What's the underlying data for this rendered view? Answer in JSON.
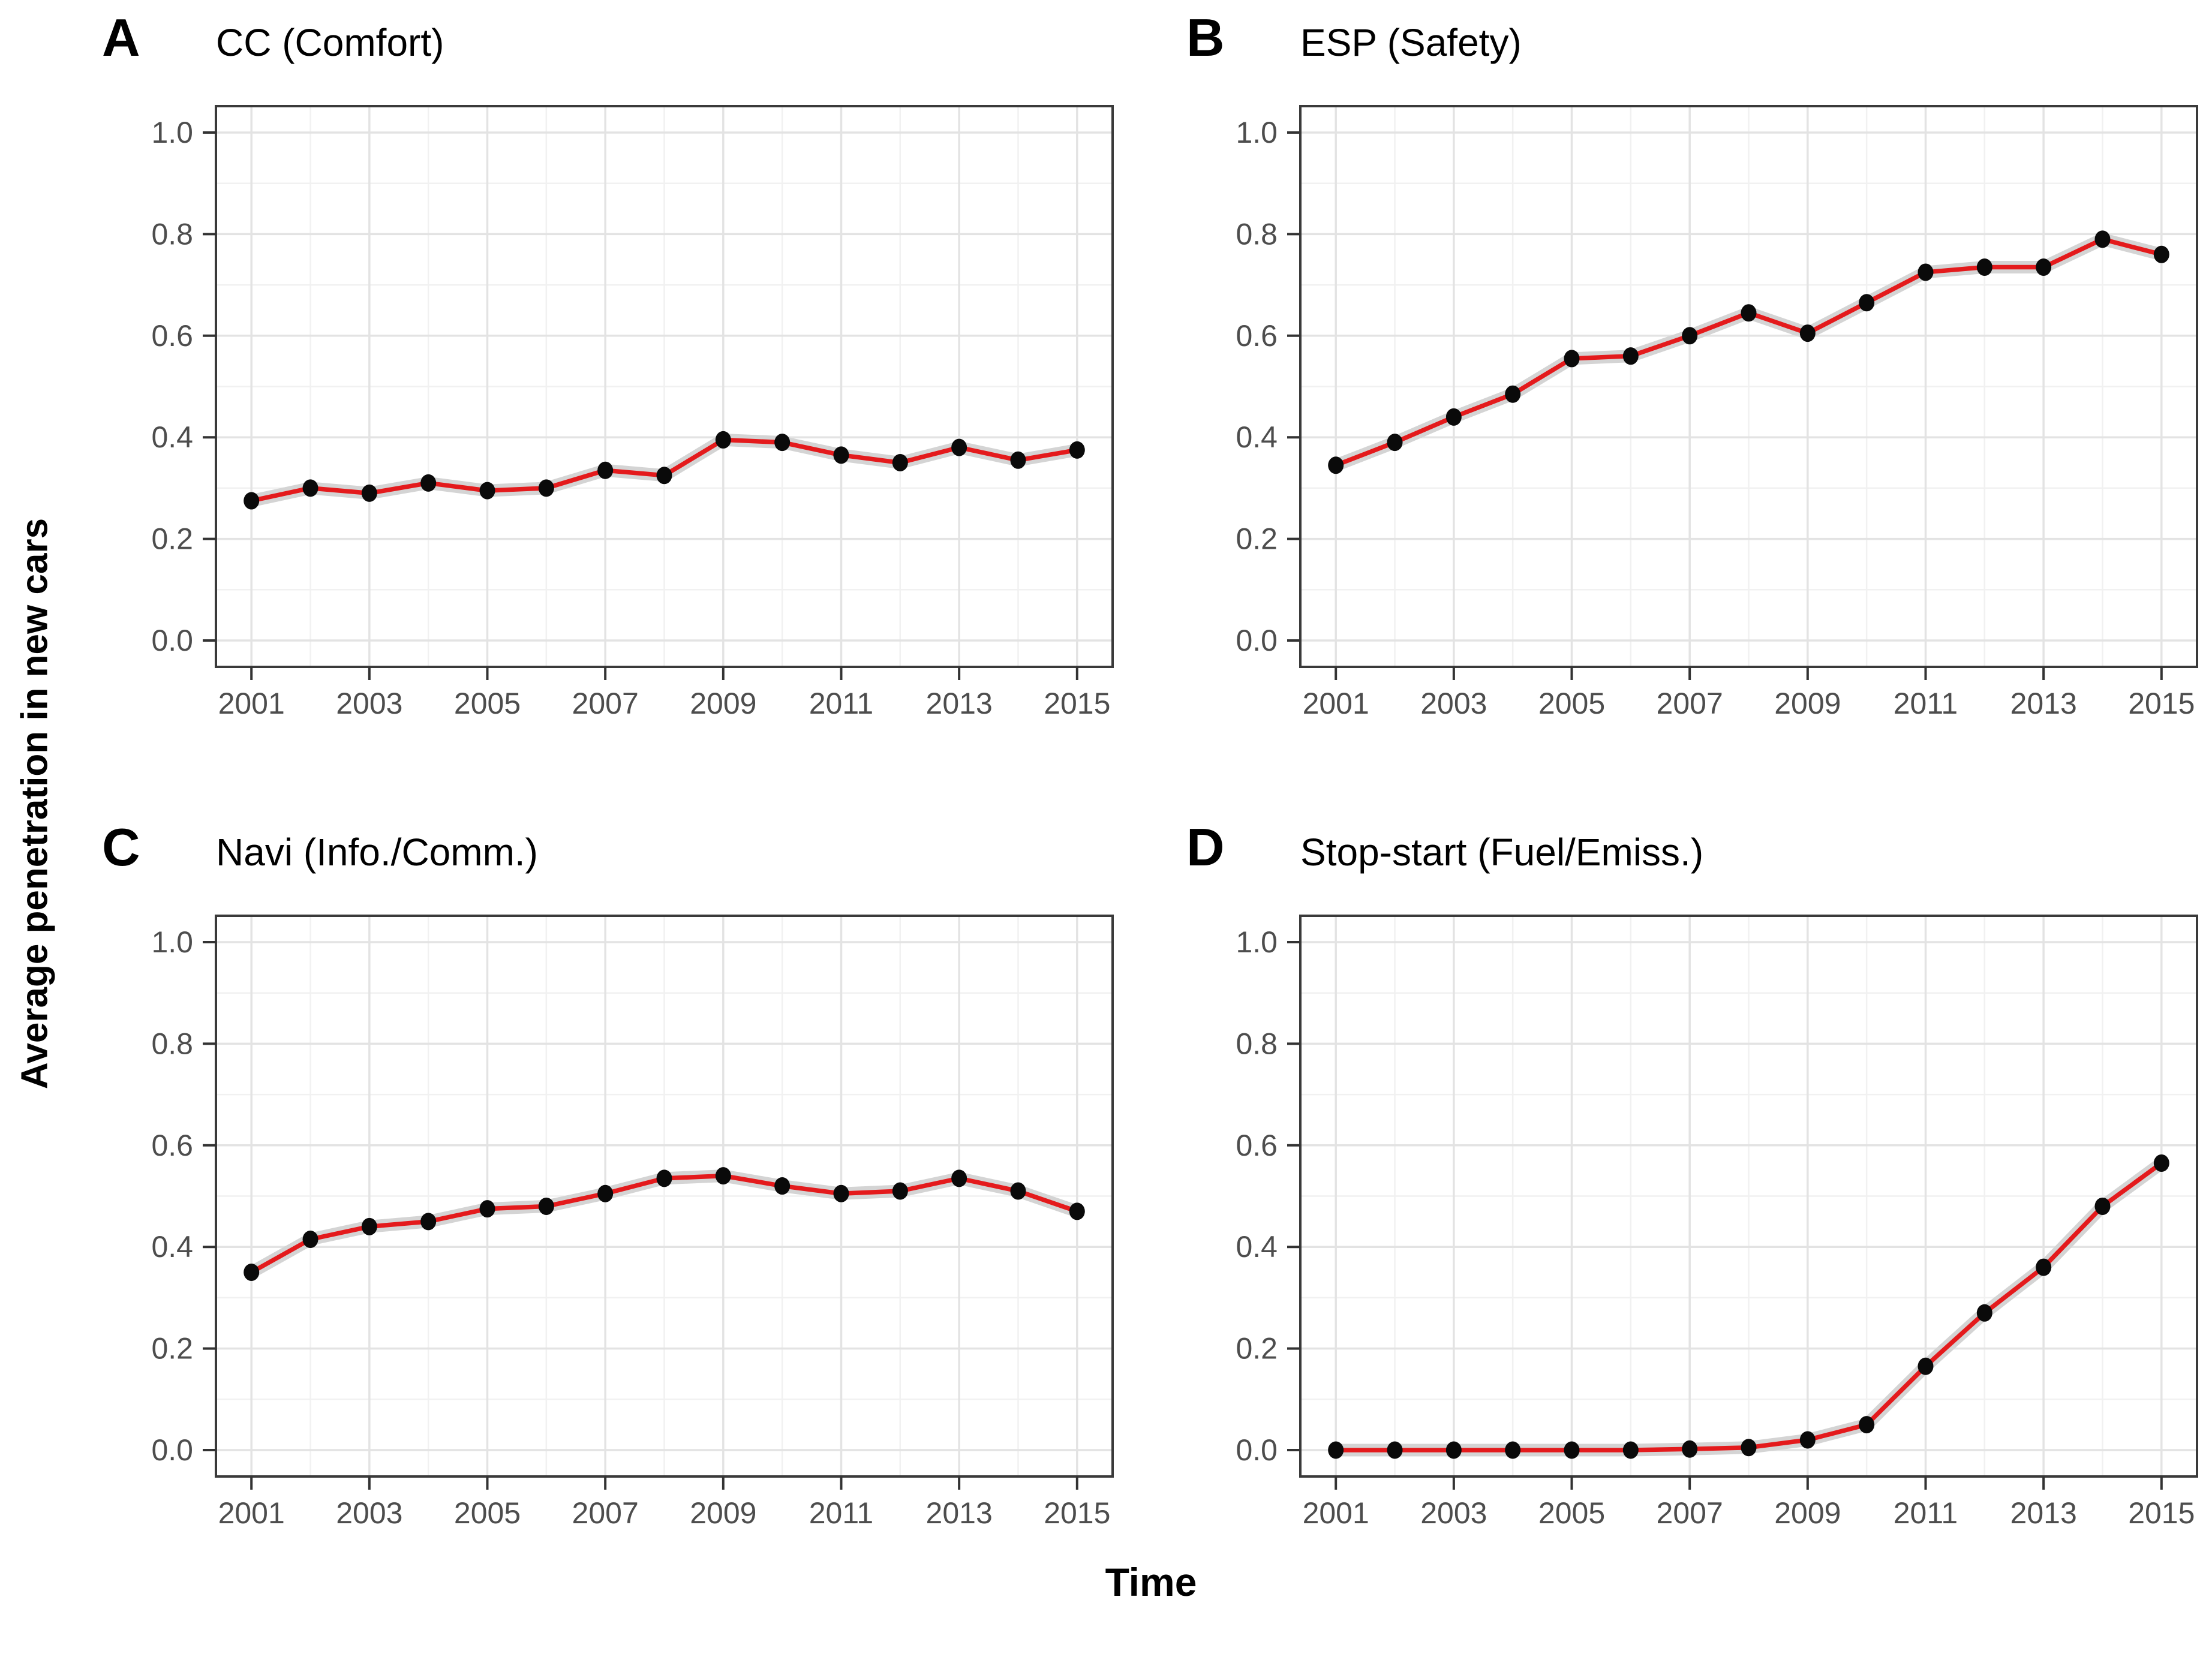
{
  "figure": {
    "ylabel": "Average penetration in new cars",
    "xlabel": "Time",
    "colors": {
      "line": "#e41a1c",
      "point": "#0a0a0a",
      "band": "#d4d4d4",
      "grid_major": "#e3e3e3",
      "grid_minor": "#f1f1f1",
      "panel_border": "#3a3a3a",
      "axis_tick": "#333333",
      "tick_label": "#4d4d4d",
      "plot_background": "#ffffff"
    }
  },
  "chart_data": [
    {
      "type": "line",
      "panel_label": "A",
      "title": "CC (Comfort)",
      "x": [
        2001,
        2002,
        2003,
        2004,
        2005,
        2006,
        2007,
        2008,
        2009,
        2010,
        2011,
        2012,
        2013,
        2014,
        2015
      ],
      "values": [
        0.275,
        0.3,
        0.29,
        0.31,
        0.295,
        0.3,
        0.335,
        0.325,
        0.395,
        0.39,
        0.365,
        0.35,
        0.38,
        0.355,
        0.375
      ],
      "x_ticks": [
        2001,
        2003,
        2005,
        2007,
        2009,
        2011,
        2013,
        2015
      ],
      "y_ticks": [
        0.0,
        0.2,
        0.4,
        0.6,
        0.8,
        1.0
      ],
      "xlim": [
        2001,
        2015
      ],
      "ylim": [
        0.0,
        1.0
      ],
      "grid": true,
      "legend": "none"
    },
    {
      "type": "line",
      "panel_label": "B",
      "title": "ESP (Safety)",
      "x": [
        2001,
        2002,
        2003,
        2004,
        2005,
        2006,
        2007,
        2008,
        2009,
        2010,
        2011,
        2012,
        2013,
        2014,
        2015
      ],
      "values": [
        0.345,
        0.39,
        0.44,
        0.485,
        0.555,
        0.56,
        0.6,
        0.645,
        0.605,
        0.665,
        0.725,
        0.735,
        0.735,
        0.79,
        0.76
      ],
      "x_ticks": [
        2001,
        2003,
        2005,
        2007,
        2009,
        2011,
        2013,
        2015
      ],
      "y_ticks": [
        0.0,
        0.2,
        0.4,
        0.6,
        0.8,
        1.0
      ],
      "xlim": [
        2001,
        2015
      ],
      "ylim": [
        0.0,
        1.0
      ],
      "grid": true,
      "legend": "none"
    },
    {
      "type": "line",
      "panel_label": "C",
      "title": "Navi (Info./Comm.)",
      "x": [
        2001,
        2002,
        2003,
        2004,
        2005,
        2006,
        2007,
        2008,
        2009,
        2010,
        2011,
        2012,
        2013,
        2014,
        2015
      ],
      "values": [
        0.35,
        0.415,
        0.44,
        0.45,
        0.475,
        0.48,
        0.505,
        0.535,
        0.54,
        0.52,
        0.505,
        0.51,
        0.535,
        0.51,
        0.47
      ],
      "x_ticks": [
        2001,
        2003,
        2005,
        2007,
        2009,
        2011,
        2013,
        2015
      ],
      "y_ticks": [
        0.0,
        0.2,
        0.4,
        0.6,
        0.8,
        1.0
      ],
      "xlim": [
        2001,
        2015
      ],
      "ylim": [
        0.0,
        1.0
      ],
      "grid": true,
      "legend": "none"
    },
    {
      "type": "line",
      "panel_label": "D",
      "title": "Stop-start (Fuel/Emiss.)",
      "x": [
        2001,
        2002,
        2003,
        2004,
        2005,
        2006,
        2007,
        2008,
        2009,
        2010,
        2011,
        2012,
        2013,
        2014,
        2015
      ],
      "values": [
        0.0,
        0.0,
        0.0,
        0.0,
        0.0,
        0.0,
        0.002,
        0.005,
        0.02,
        0.05,
        0.165,
        0.27,
        0.36,
        0.48,
        0.565
      ],
      "x_ticks": [
        2001,
        2003,
        2005,
        2007,
        2009,
        2011,
        2013,
        2015
      ],
      "y_ticks": [
        0.0,
        0.2,
        0.4,
        0.6,
        0.8,
        1.0
      ],
      "xlim": [
        2001,
        2015
      ],
      "ylim": [
        0.0,
        1.0
      ],
      "grid": true,
      "legend": "none"
    }
  ]
}
